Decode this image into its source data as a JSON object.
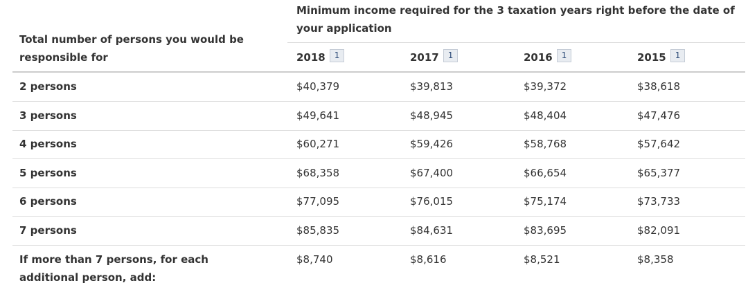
{
  "table": {
    "row_header": "Total number of persons you would be responsible for",
    "group_header": "Minimum income required for the 3 taxation years right before the date of your application",
    "columns": [
      {
        "year": "2018",
        "note": "1"
      },
      {
        "year": "2017",
        "note": "1"
      },
      {
        "year": "2016",
        "note": "1"
      },
      {
        "year": "2015",
        "note": "1"
      }
    ],
    "rows": [
      {
        "label": "2 persons",
        "values": [
          "$40,379",
          "$39,813",
          "$39,372",
          "$38,618"
        ]
      },
      {
        "label": "3 persons",
        "values": [
          "$49,641",
          "$48,945",
          "$48,404",
          "$47,476"
        ]
      },
      {
        "label": "4 persons",
        "values": [
          "$60,271",
          "$59,426",
          "$58,768",
          "$57,642"
        ]
      },
      {
        "label": "5 persons",
        "values": [
          "$68,358",
          "$67,400",
          "$66,654",
          "$65,377"
        ]
      },
      {
        "label": "6 persons",
        "values": [
          "$77,095",
          "$76,015",
          "$75,174",
          "$73,733"
        ]
      },
      {
        "label": "7 persons",
        "values": [
          "$85,835",
          "$84,631",
          "$83,695",
          "$82,091"
        ]
      },
      {
        "label": "If more than 7 persons, for each additional person, add:",
        "values": [
          "$8,740",
          "$8,616",
          "$8,521",
          "$8,358"
        ]
      }
    ]
  }
}
